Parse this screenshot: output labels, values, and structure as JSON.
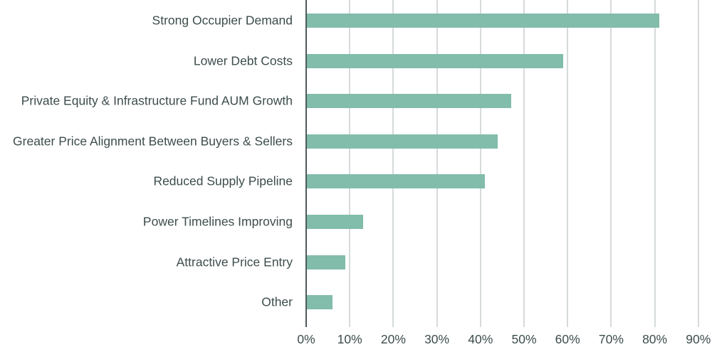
{
  "chart_data": {
    "type": "bar",
    "orientation": "horizontal",
    "title": "",
    "xlabel": "",
    "ylabel": "",
    "categories": [
      "Strong Occupier Demand",
      "Lower Debt Costs",
      "Private Equity & Infrastructure Fund AUM Growth",
      "Greater Price Alignment Between Buyers & Sellers",
      "Reduced Supply Pipeline",
      "Power Timelines Improving",
      "Attractive Price Entry",
      "Other"
    ],
    "values": [
      81,
      59,
      47,
      44,
      41,
      13,
      9,
      6
    ],
    "unit": "%",
    "xlim": [
      0,
      90
    ],
    "x_ticks": [
      "0%",
      "10%",
      "20%",
      "30%",
      "40%",
      "50%",
      "60%",
      "70%",
      "80%",
      "90%"
    ],
    "grid": "vertical",
    "legend": "none",
    "bar_color": "#82bcab"
  }
}
